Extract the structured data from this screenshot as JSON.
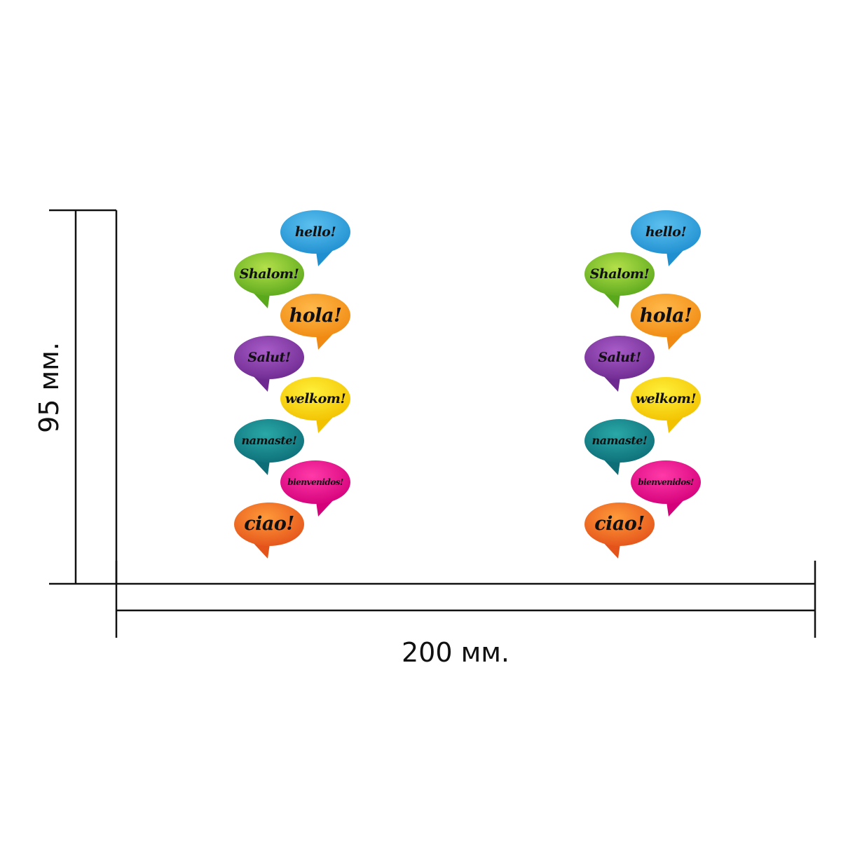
{
  "dimensions": {
    "width_label": "200 мм.",
    "height_label": "95 мм."
  },
  "columns": [
    {
      "bubbles": [
        {
          "text": "hello!",
          "color_light": "#5cc0ef",
          "color_dark": "#1f8fd0",
          "tail": "right"
        },
        {
          "text": "Shalom!",
          "color_light": "#b4e04a",
          "color_dark": "#5aa81c",
          "tail": "left"
        },
        {
          "text": "hola!",
          "color_light": "#ffb94a",
          "color_dark": "#f08a12",
          "tail": "right"
        },
        {
          "text": "Salut!",
          "color_light": "#a85cc8",
          "color_dark": "#6e2a90",
          "tail": "left"
        },
        {
          "text": "welkom!",
          "color_light": "#fff03a",
          "color_dark": "#f2c200",
          "tail": "right"
        },
        {
          "text": "namaste!",
          "color_light": "#2aa8a8",
          "color_dark": "#0d6e78",
          "tail": "left"
        },
        {
          "text": "bienvenidos!",
          "color_light": "#ff3aa8",
          "color_dark": "#d4007a",
          "tail": "right"
        },
        {
          "text": "ciao!",
          "color_light": "#ff9a3a",
          "color_dark": "#e4531a",
          "tail": "left"
        }
      ]
    },
    {
      "bubbles": [
        {
          "text": "hello!",
          "color_light": "#5cc0ef",
          "color_dark": "#1f8fd0",
          "tail": "right"
        },
        {
          "text": "Shalom!",
          "color_light": "#b4e04a",
          "color_dark": "#5aa81c",
          "tail": "left"
        },
        {
          "text": "hola!",
          "color_light": "#ffb94a",
          "color_dark": "#f08a12",
          "tail": "right"
        },
        {
          "text": "Salut!",
          "color_light": "#a85cc8",
          "color_dark": "#6e2a90",
          "tail": "left"
        },
        {
          "text": "welkom!",
          "color_light": "#fff03a",
          "color_dark": "#f2c200",
          "tail": "right"
        },
        {
          "text": "namaste!",
          "color_light": "#2aa8a8",
          "color_dark": "#0d6e78",
          "tail": "left"
        },
        {
          "text": "bienvenidos!",
          "color_light": "#ff3aa8",
          "color_dark": "#d4007a",
          "tail": "right"
        },
        {
          "text": "ciao!",
          "color_light": "#ff9a3a",
          "color_dark": "#e4531a",
          "tail": "left"
        }
      ]
    }
  ]
}
